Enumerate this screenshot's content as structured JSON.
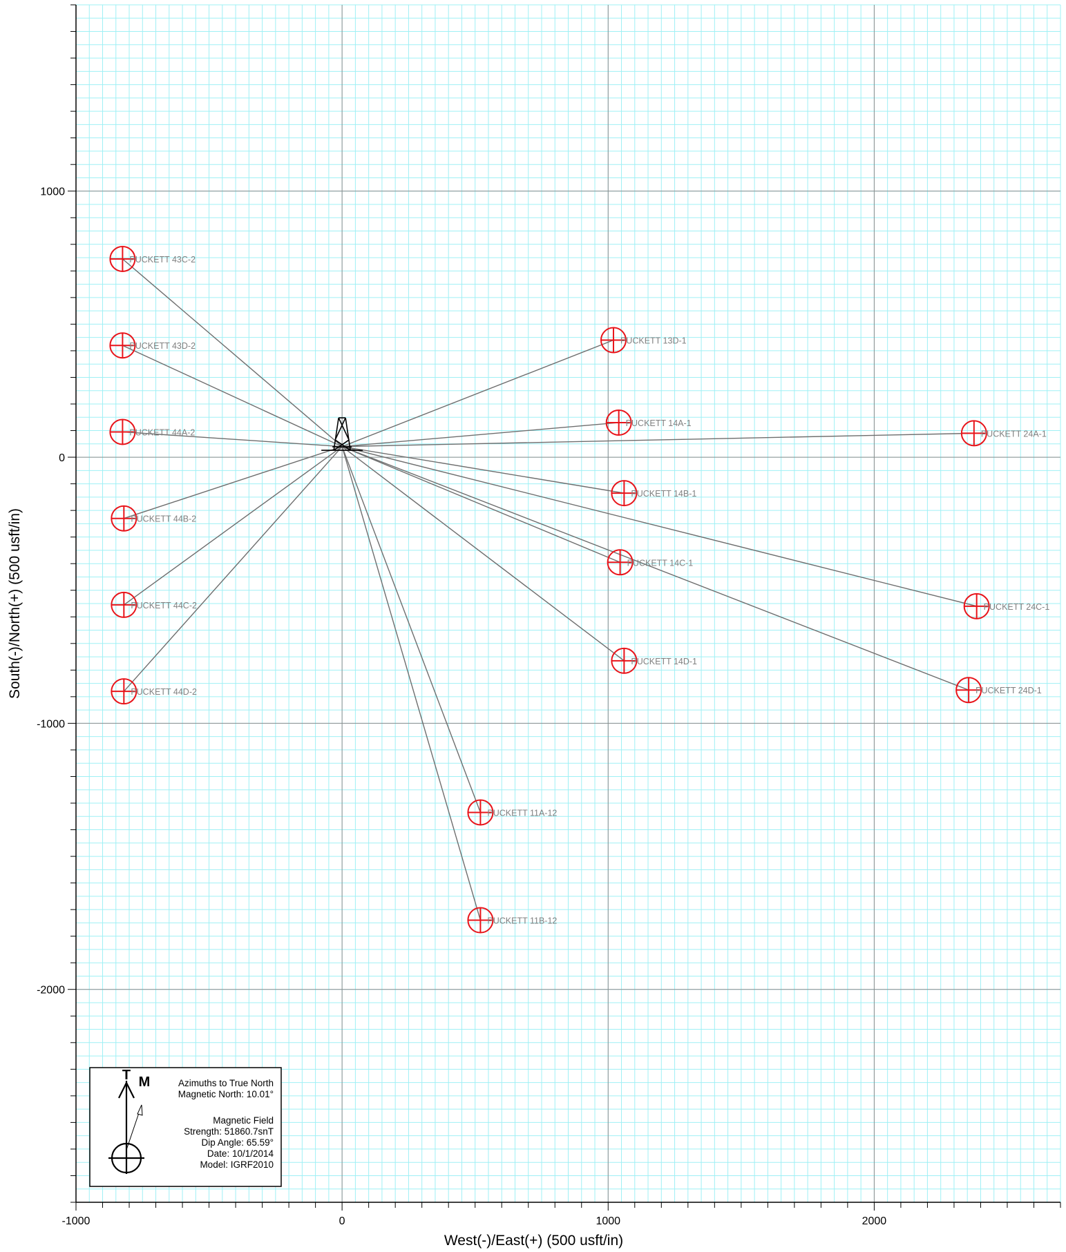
{
  "chart_data": {
    "type": "scatter",
    "title": "",
    "xlabel": "West(-)/East(+) (500 usft/in)",
    "ylabel": "South(-)/North(+) (500 usft/in)",
    "xlim": [
      -1000,
      2700
    ],
    "ylim": [
      -2800,
      1700
    ],
    "x_ticks": [
      -1000,
      0,
      1000,
      2000
    ],
    "y_ticks": [
      1000,
      0,
      -1000,
      -2000
    ],
    "x_tick_labels": [
      "-1000",
      "0",
      "1000",
      "2000"
    ],
    "y_tick_labels": [
      "1000",
      "0",
      "-1000",
      "-2000"
    ],
    "grid": true,
    "colors": {
      "minor_grid": "#9ff0f5",
      "major_grid": "#8c8c8c",
      "target": "#e8141a",
      "path": "#6e6e6e",
      "label": "#808080"
    },
    "surface_location": {
      "x": 0,
      "y": 40
    },
    "wells": [
      {
        "name": "PUCKETT 43C-2",
        "x": -825,
        "y": 745
      },
      {
        "name": "PUCKETT 43D-2",
        "x": -825,
        "y": 420
      },
      {
        "name": "PUCKETT 44A-2",
        "x": -825,
        "y": 95
      },
      {
        "name": "PUCKETT 44B-2",
        "x": -820,
        "y": -230
      },
      {
        "name": "PUCKETT 44C-2",
        "x": -820,
        "y": -555
      },
      {
        "name": "PUCKETT 44D-2",
        "x": -820,
        "y": -880
      },
      {
        "name": "PUCKETT 13D-1",
        "x": 1020,
        "y": 440
      },
      {
        "name": "PUCKETT 14A-1",
        "x": 1040,
        "y": 130
      },
      {
        "name": "PUCKETT 14B-1",
        "x": 1060,
        "y": -135
      },
      {
        "name": "PUCKETT 14C-1",
        "x": 1045,
        "y": -395
      },
      {
        "name": "PUCKETT 14D-1",
        "x": 1060,
        "y": -765
      },
      {
        "name": "PUCKETT 24A-1",
        "x": 2375,
        "y": 90
      },
      {
        "name": "PUCKETT 24C-1",
        "x": 2385,
        "y": -560
      },
      {
        "name": "PUCKETT 24D-1",
        "x": 2355,
        "y": -875
      },
      {
        "name": "PUCKETT 11A-12",
        "x": 520,
        "y": -1335
      },
      {
        "name": "PUCKETT 11B-12",
        "x": 520,
        "y": -1740
      }
    ]
  },
  "legend": {
    "true_north_symbol": "T",
    "magnetic_north_symbol": "M",
    "line1": "Azimuths to True North",
    "line2": "Magnetic North: 10.01°",
    "line3": "Magnetic Field",
    "line4": "Strength: 51860.7snT",
    "line5": "Dip Angle: 65.59°",
    "line6": "Date: 10/1/2014",
    "line7": "Model: IGRF2010"
  }
}
